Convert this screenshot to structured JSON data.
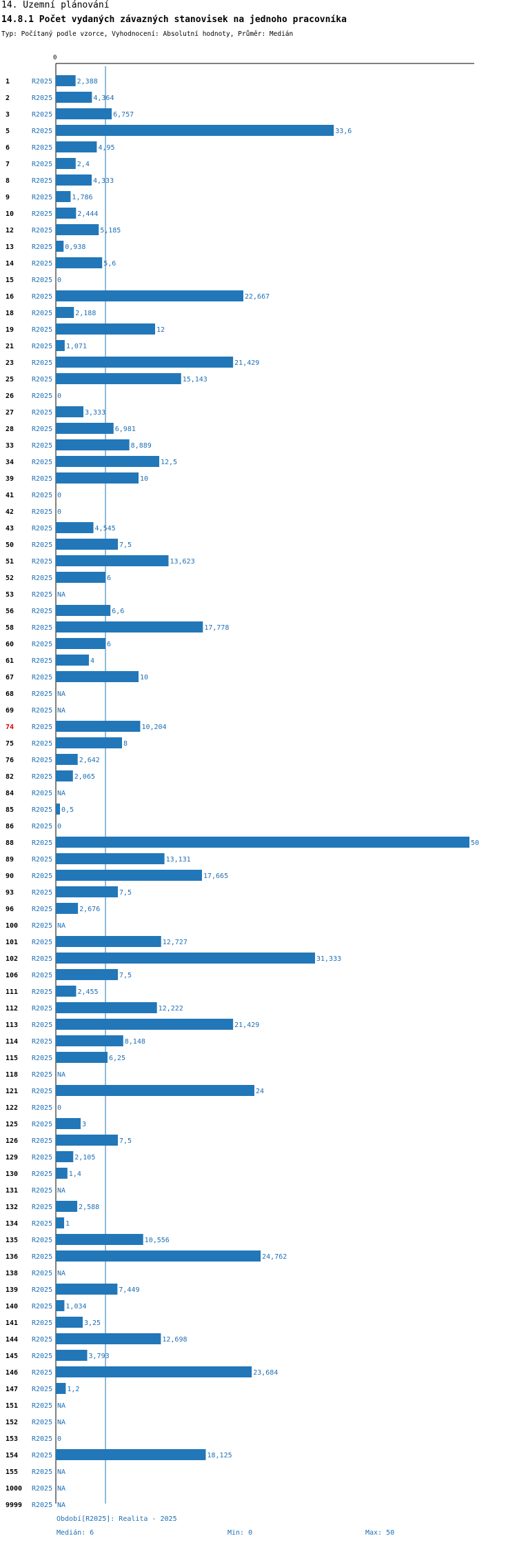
{
  "header": {
    "section_title": "14. Územní plánování",
    "chart_title": "14.8.1 Počet vydaných závazných stanovisek na jednoho pracovníka",
    "subtitle": "Typ: Počítaný podle vzorce, Vyhodnocení: Absolutní hodnoty, Průměr: Medián"
  },
  "colors": {
    "bar": "#2277b8",
    "text_blue": "#1e6eb4",
    "highlight": "#e00000",
    "median_line": "#2277b8"
  },
  "chart_data": {
    "type": "bar",
    "orientation": "horizontal",
    "title": "14.8.1 Počet vydaných závazných stanovisek na jednoho pracovníka",
    "period_label": "R2025",
    "x_axis_zero_label": "0",
    "xlim": [
      0,
      50
    ],
    "median": 6,
    "highlighted_category": "74",
    "na_label": "NA",
    "categories": [
      "1",
      "2",
      "3",
      "5",
      "6",
      "7",
      "8",
      "9",
      "10",
      "12",
      "13",
      "14",
      "15",
      "16",
      "18",
      "19",
      "21",
      "23",
      "25",
      "26",
      "27",
      "28",
      "33",
      "34",
      "39",
      "41",
      "42",
      "43",
      "50",
      "51",
      "52",
      "53",
      "56",
      "58",
      "60",
      "61",
      "67",
      "68",
      "69",
      "74",
      "75",
      "76",
      "82",
      "84",
      "85",
      "86",
      "88",
      "89",
      "90",
      "93",
      "96",
      "100",
      "101",
      "102",
      "106",
      "111",
      "112",
      "113",
      "114",
      "115",
      "118",
      "121",
      "122",
      "125",
      "126",
      "129",
      "130",
      "131",
      "132",
      "134",
      "135",
      "136",
      "138",
      "139",
      "140",
      "141",
      "144",
      "145",
      "146",
      "147",
      "151",
      "152",
      "153",
      "154",
      "155",
      "1000",
      "9999"
    ],
    "values": [
      2.388,
      4.364,
      6.757,
      33.6,
      4.95,
      2.4,
      4.333,
      1.786,
      2.444,
      5.185,
      0.938,
      5.6,
      0,
      22.667,
      2.188,
      12,
      1.071,
      21.429,
      15.143,
      0,
      3.333,
      6.981,
      8.889,
      12.5,
      10,
      0,
      0,
      4.545,
      7.5,
      13.623,
      6,
      null,
      6.6,
      17.778,
      6,
      4,
      10,
      null,
      null,
      10.204,
      8,
      2.642,
      2.065,
      null,
      0.5,
      0,
      50,
      13.131,
      17.665,
      7.5,
      2.676,
      null,
      12.727,
      31.333,
      7.5,
      2.455,
      12.222,
      21.429,
      8.148,
      6.25,
      null,
      24,
      0,
      3,
      7.5,
      2.105,
      1.4,
      null,
      2.588,
      1,
      10.556,
      24.762,
      null,
      7.449,
      1.034,
      3.25,
      12.698,
      3.793,
      23.684,
      1.2,
      null,
      null,
      0,
      18.125,
      null,
      null,
      null
    ],
    "value_labels": [
      "2,388",
      "4,364",
      "6,757",
      "33,6",
      "4,95",
      "2,4",
      "4,333",
      "1,786",
      "2,444",
      "5,185",
      "0,938",
      "5,6",
      "0",
      "22,667",
      "2,188",
      "12",
      "1,071",
      "21,429",
      "15,143",
      "0",
      "3,333",
      "6,981",
      "8,889",
      "12,5",
      "10",
      "0",
      "0",
      "4,545",
      "7,5",
      "13,623",
      "6",
      "NA",
      "6,6",
      "17,778",
      "6",
      "4",
      "10",
      "NA",
      "NA",
      "10,204",
      "8",
      "2,642",
      "2,065",
      "NA",
      "0,5",
      "0",
      "50",
      "13,131",
      "17,665",
      "7,5",
      "2,676",
      "NA",
      "12,727",
      "31,333",
      "7,5",
      "2,455",
      "12,222",
      "21,429",
      "8,148",
      "6,25",
      "NA",
      "24",
      "0",
      "3",
      "7,5",
      "2,105",
      "1,4",
      "NA",
      "2,588",
      "1",
      "10,556",
      "24,762",
      "NA",
      "7,449",
      "1,034",
      "3,25",
      "12,698",
      "3,793",
      "23,684",
      "1,2",
      "NA",
      "NA",
      "0",
      "18,125",
      "NA",
      "NA",
      "NA"
    ]
  },
  "footer": {
    "period_text": "Období[R2025]: Realita - 2025",
    "median_text": "Medián: 6",
    "min_text": "Min: 0",
    "max_text": "Max: 50"
  }
}
